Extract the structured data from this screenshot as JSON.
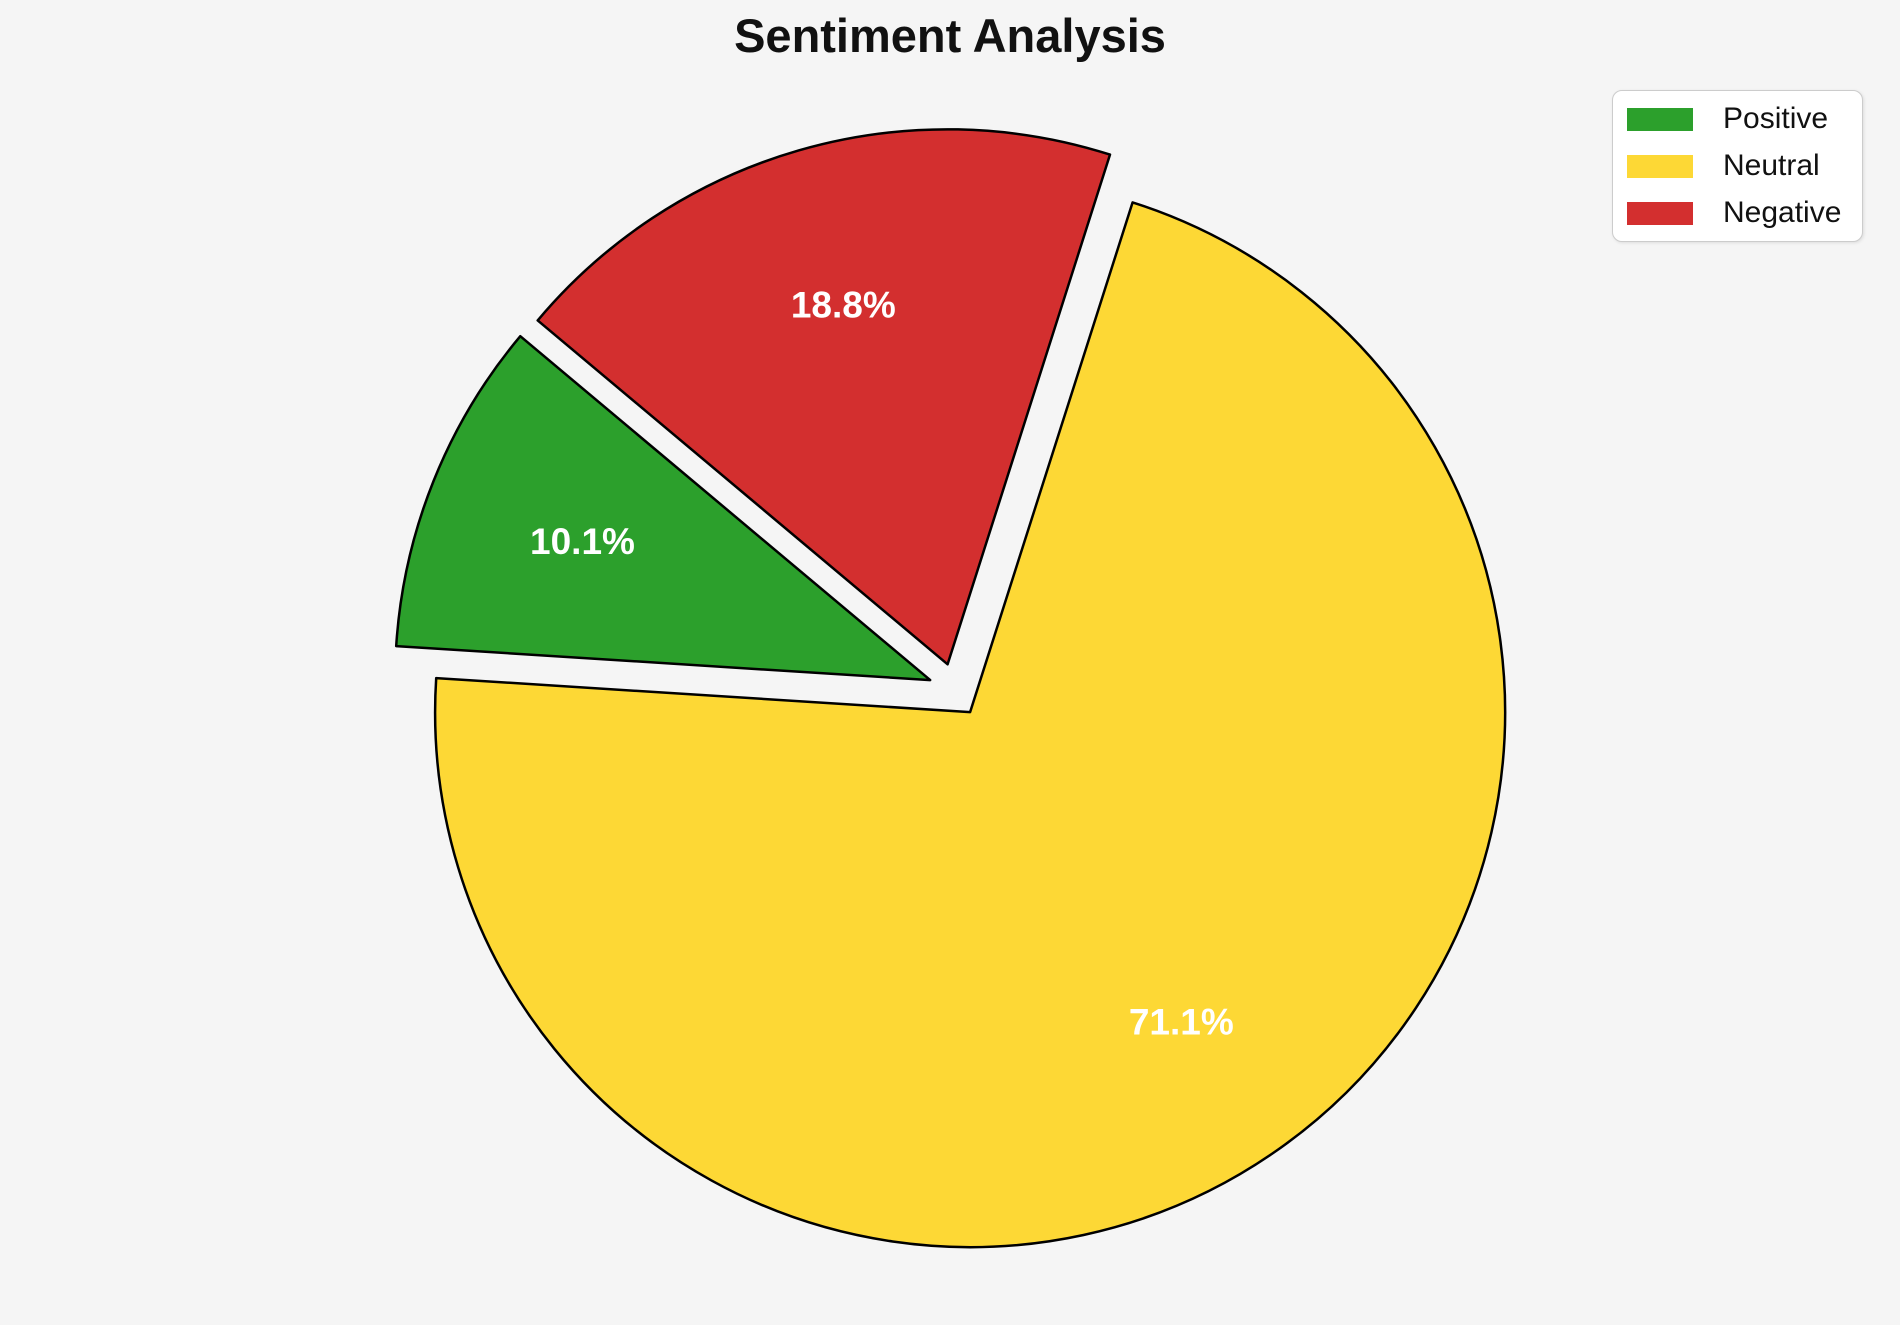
{
  "figure": {
    "background_color": "#f5f5f5"
  },
  "chart_data": {
    "type": "pie",
    "title": "Sentiment Analysis",
    "slices": [
      {
        "label": "Positive",
        "value": 10.1,
        "pct_label": "10.1%",
        "color": "#2ca02c"
      },
      {
        "label": "Neutral",
        "value": 71.1,
        "pct_label": "71.1%",
        "color": "#fdd835"
      },
      {
        "label": "Negative",
        "value": 18.8,
        "pct_label": "18.8%",
        "color": "#d32f2f"
      }
    ],
    "legend": {
      "position": "upper right",
      "entries": [
        "Positive",
        "Neutral",
        "Negative"
      ]
    },
    "layout": {
      "start_angle_deg": 140,
      "direction": "counterclockwise",
      "explode_fraction": 0.05,
      "pct_label_distance": 0.7,
      "edge_color": "#000000",
      "pct_label_color": "#ffffff"
    }
  }
}
